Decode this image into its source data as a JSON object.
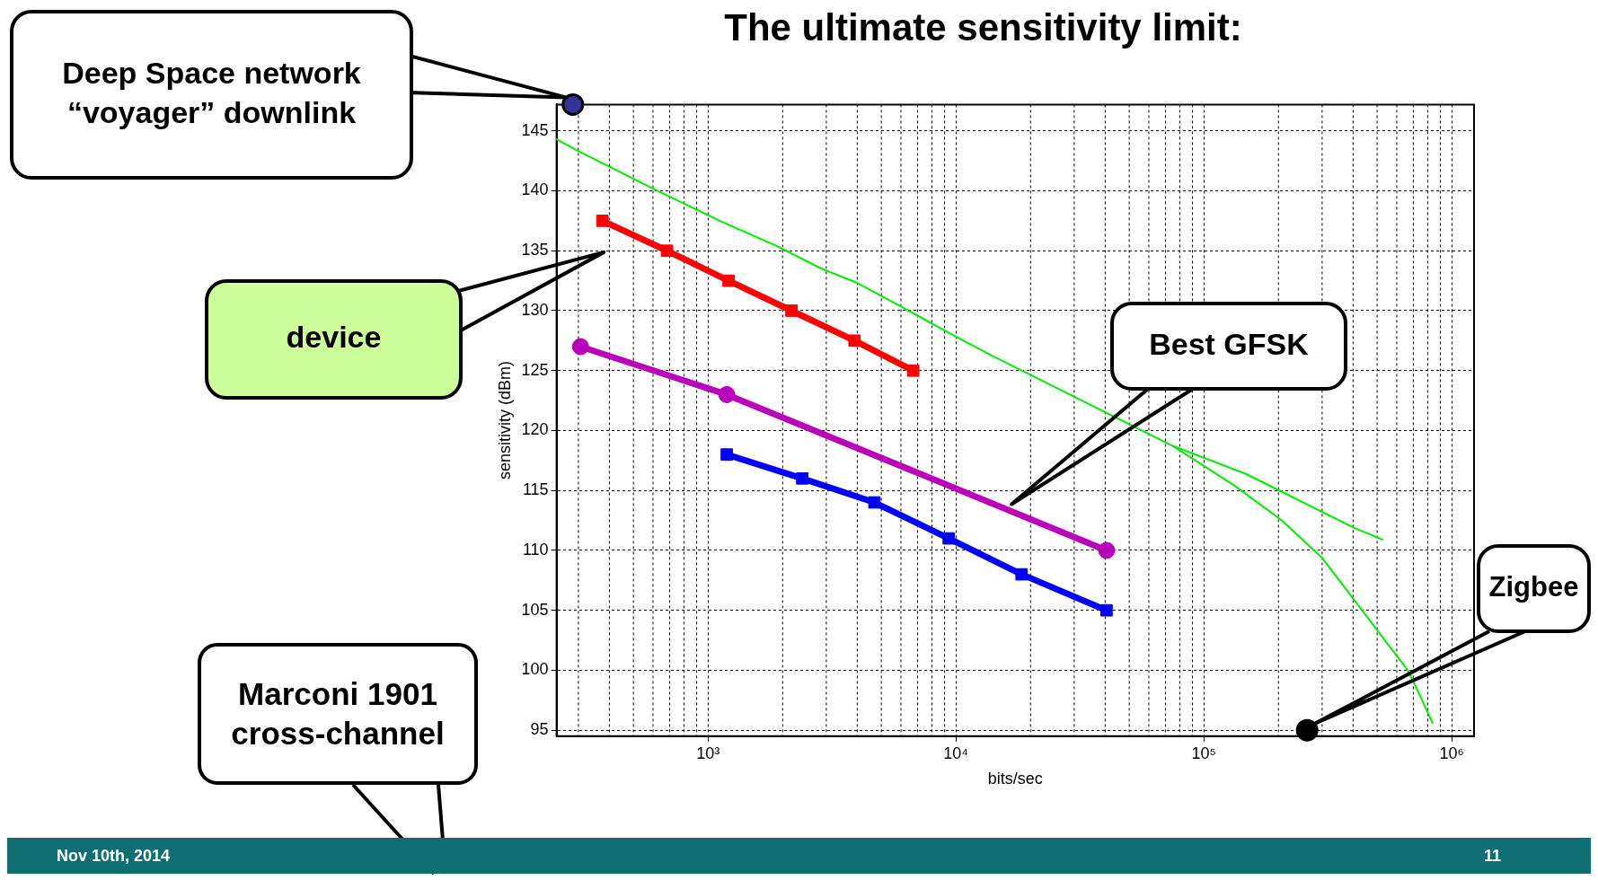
{
  "chart_data": {
    "type": "line",
    "title": "The ultimate sensitivity limit:",
    "xlabel": "bits/sec",
    "ylabel": "sensitivity (dBm)",
    "log": "x",
    "grid": true,
    "legend": false,
    "xlim": [
      245,
      1230000
    ],
    "xticks": [
      {
        "value": 1000,
        "label": "10³"
      },
      {
        "value": 10000,
        "label": "10⁴"
      },
      {
        "value": 100000,
        "label": "10⁵"
      },
      {
        "value": 1000000,
        "label": "10⁶"
      }
    ],
    "ylim": [
      94.5,
      147.2
    ],
    "yticks": [
      95,
      100,
      105,
      110,
      115,
      120,
      125,
      130,
      135,
      140,
      145
    ],
    "series": [
      {
        "color": "#ff0000",
        "marker": "square",
        "x": [
          375,
          683,
          1210,
          2170,
          3900,
          6720
        ],
        "values": [
          137.5,
          135,
          132.5,
          130,
          127.5,
          125
        ]
      },
      {
        "color": "#bb00bb",
        "marker": "circle",
        "x": [
          306,
          1190,
          40500
        ],
        "values": [
          127,
          123,
          110
        ]
      },
      {
        "color": "#0000ff",
        "marker": "square",
        "x": [
          1190,
          2400,
          4690,
          9350,
          18400,
          40500
        ],
        "values": [
          118,
          116,
          114,
          111,
          108,
          105
        ]
      },
      {
        "color": "#00ee00",
        "marker": "none",
        "x": [
          245,
          300,
          402,
          610,
          1140,
          1890,
          2870,
          4010,
          6120,
          9640,
          14100,
          75200,
          147000,
          402000,
          525000
        ],
        "values": [
          144.3,
          143.3,
          142,
          140.1,
          137.4,
          135.4,
          133.5,
          132.3,
          130.25,
          128,
          126.2,
          118.7,
          116.4,
          111.9,
          110.9
        ]
      },
      {
        "color": "#00ee00",
        "marker": "none",
        "x": [
          75200,
          135000,
          206000,
          299000,
          664000,
          721000,
          836000
        ],
        "values": [
          118.7,
          115.3,
          112.5,
          109.4,
          100,
          98.5,
          95.6
        ]
      },
      {
        "type": "scatter",
        "color": "#333399",
        "marker": "circle",
        "x": [
          285
        ],
        "values": [
          147.2
        ]
      },
      {
        "type": "scatter",
        "color": "#000000",
        "marker": "circle",
        "x": [
          261000
        ],
        "values": [
          95
        ]
      }
    ],
    "annotations": [
      "Deep Space network “voyager” downlink",
      "device",
      "Best GFSK",
      "Zigbee",
      "Marconi 1901 cross-channel",
      "Nov 10th, 2014",
      "11"
    ]
  }
}
